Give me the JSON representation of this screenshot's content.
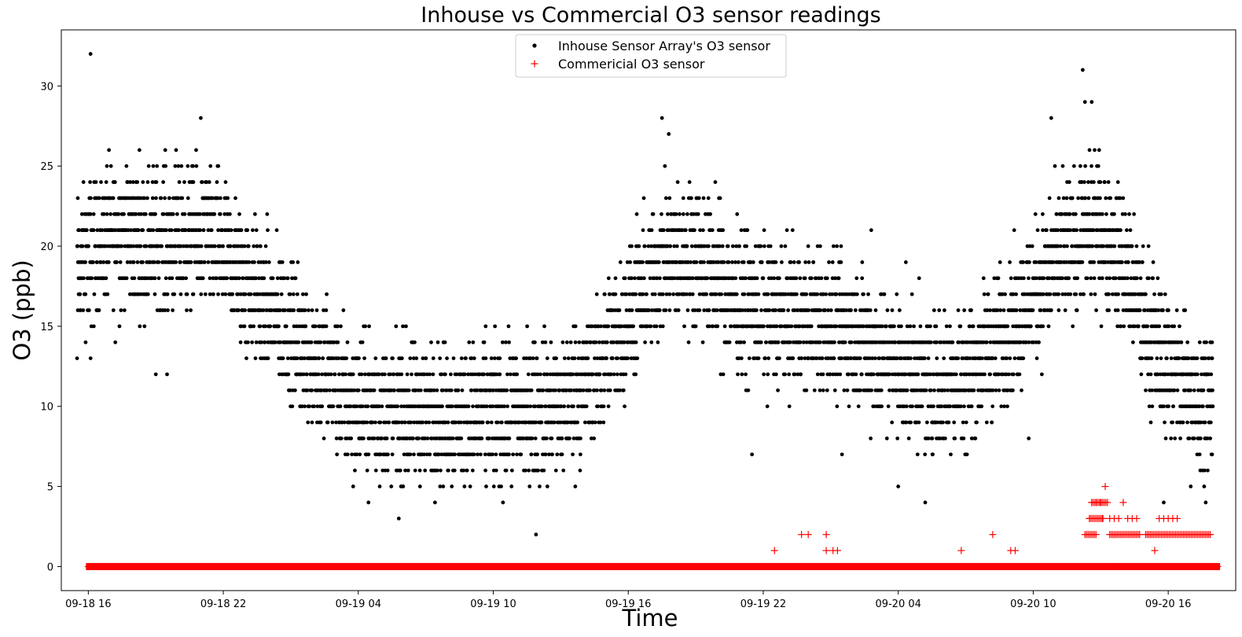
{
  "chart_data": {
    "type": "scatter",
    "title": "Inhouse vs Commercial O3 sensor readings",
    "xlabel": "Time",
    "ylabel": "O3 (ppb)",
    "x_unit": "hours",
    "xlim": [
      -1.2,
      51.0
    ],
    "ylim": [
      -1.5,
      33.5
    ],
    "x_ticks": [
      {
        "x": 0,
        "label": "09-18 16"
      },
      {
        "x": 6,
        "label": "09-18 22"
      },
      {
        "x": 12,
        "label": "09-19 04"
      },
      {
        "x": 18,
        "label": "09-19 10"
      },
      {
        "x": 24,
        "label": "09-19 16"
      },
      {
        "x": 30,
        "label": "09-19 22"
      },
      {
        "x": 36,
        "label": "09-20 04"
      },
      {
        "x": 42,
        "label": "09-20 10"
      },
      {
        "x": 48,
        "label": "09-20 16"
      }
    ],
    "y_ticks": [
      0,
      5,
      10,
      15,
      20,
      25,
      30
    ],
    "grid": false,
    "legend_position": "upper center",
    "series": [
      {
        "name": "Inhouse Sensor Array's O3 sensor",
        "marker": "dot",
        "color": "#000000",
        "profile": [
          [
            -0.5,
            18.5
          ],
          [
            1.0,
            21
          ],
          [
            2.5,
            20.5
          ],
          [
            4.0,
            20.5
          ],
          [
            5.5,
            20.5
          ],
          [
            7.0,
            17.5
          ],
          [
            8.5,
            15.5
          ],
          [
            10.0,
            13
          ],
          [
            11.5,
            10.5
          ],
          [
            13.0,
            9.5
          ],
          [
            15.0,
            9.5
          ],
          [
            17.0,
            9.5
          ],
          [
            19.0,
            9.5
          ],
          [
            21.0,
            10
          ],
          [
            22.5,
            12
          ],
          [
            24.0,
            15.5
          ],
          [
            25.5,
            19
          ],
          [
            27.0,
            19.5
          ],
          [
            28.5,
            17
          ],
          [
            30.0,
            16
          ],
          [
            31.5,
            15.5
          ],
          [
            33.0,
            15
          ],
          [
            34.5,
            14
          ],
          [
            36.0,
            12.5
          ],
          [
            37.5,
            11.5
          ],
          [
            39.0,
            12
          ],
          [
            40.5,
            14
          ],
          [
            42.0,
            17
          ],
          [
            43.5,
            20
          ],
          [
            45.0,
            21
          ],
          [
            46.0,
            19
          ],
          [
            47.0,
            15
          ],
          [
            48.5,
            11.5
          ],
          [
            49.5,
            10.5
          ],
          [
            50.0,
            10.5
          ]
        ],
        "spread": 3.2,
        "outliers": [
          {
            "x": 0.1,
            "y": 32
          },
          {
            "x": -0.5,
            "y": 13
          },
          {
            "x": 0.1,
            "y": 13
          },
          {
            "x": 3.0,
            "y": 12
          },
          {
            "x": 3.5,
            "y": 12
          },
          {
            "x": 1.2,
            "y": 14
          },
          {
            "x": 5.0,
            "y": 28
          },
          {
            "x": 13.8,
            "y": 3
          },
          {
            "x": 19.9,
            "y": 2
          },
          {
            "x": 25.5,
            "y": 28
          },
          {
            "x": 29.5,
            "y": 7
          },
          {
            "x": 33.5,
            "y": 7
          },
          {
            "x": 34.8,
            "y": 21
          },
          {
            "x": 36.0,
            "y": 5
          },
          {
            "x": 37.2,
            "y": 4
          },
          {
            "x": 41.8,
            "y": 8
          },
          {
            "x": 42.8,
            "y": 28
          },
          {
            "x": 44.2,
            "y": 31
          },
          {
            "x": 44.3,
            "y": 29
          },
          {
            "x": 44.6,
            "y": 29
          },
          {
            "x": 47.8,
            "y": 4
          },
          {
            "x": 49.0,
            "y": 5
          },
          {
            "x": 48.7,
            "y": 16
          },
          {
            "x": 25.8,
            "y": 27
          }
        ]
      },
      {
        "name": "Commericial O3 sensor",
        "marker": "plus",
        "color": "#ff0000",
        "baseline": {
          "from": 0.0,
          "to": 50.2,
          "y": 0
        },
        "points": [
          {
            "x": 30.5,
            "y": 1
          },
          {
            "x": 31.7,
            "y": 2
          },
          {
            "x": 32.0,
            "y": 2
          },
          {
            "x": 32.8,
            "y": 2
          },
          {
            "x": 32.8,
            "y": 1
          },
          {
            "x": 33.1,
            "y": 1
          },
          {
            "x": 33.3,
            "y": 1
          },
          {
            "x": 38.8,
            "y": 1
          },
          {
            "x": 40.2,
            "y": 2
          },
          {
            "x": 41.0,
            "y": 1
          },
          {
            "x": 41.2,
            "y": 1
          },
          {
            "x": 44.5,
            "y": 3
          },
          {
            "x": 44.6,
            "y": 4
          },
          {
            "x": 44.8,
            "y": 4
          },
          {
            "x": 45.0,
            "y": 4
          },
          {
            "x": 45.2,
            "y": 5
          },
          {
            "x": 45.3,
            "y": 4
          },
          {
            "x": 45.1,
            "y": 3
          },
          {
            "x": 45.4,
            "y": 3
          },
          {
            "x": 45.6,
            "y": 3
          },
          {
            "x": 45.8,
            "y": 3
          },
          {
            "x": 46.0,
            "y": 4
          },
          {
            "x": 46.2,
            "y": 3
          },
          {
            "x": 46.4,
            "y": 3
          },
          {
            "x": 46.6,
            "y": 3
          },
          {
            "x": 47.6,
            "y": 3
          },
          {
            "x": 47.8,
            "y": 3
          },
          {
            "x": 48.0,
            "y": 3
          },
          {
            "x": 48.2,
            "y": 3
          },
          {
            "x": 48.4,
            "y": 3
          },
          {
            "x": 47.4,
            "y": 1
          },
          {
            "x": 45.6,
            "y": 0
          },
          {
            "x": 45.8,
            "y": 0
          }
        ],
        "dense_bands": [
          {
            "from": 44.3,
            "to": 44.8,
            "y": 2
          },
          {
            "from": 45.4,
            "to": 46.8,
            "y": 2
          },
          {
            "from": 47.0,
            "to": 49.9,
            "y": 2
          },
          {
            "from": 44.5,
            "to": 45.1,
            "y": 3
          },
          {
            "from": 44.6,
            "to": 45.3,
            "y": 4
          }
        ]
      }
    ]
  }
}
